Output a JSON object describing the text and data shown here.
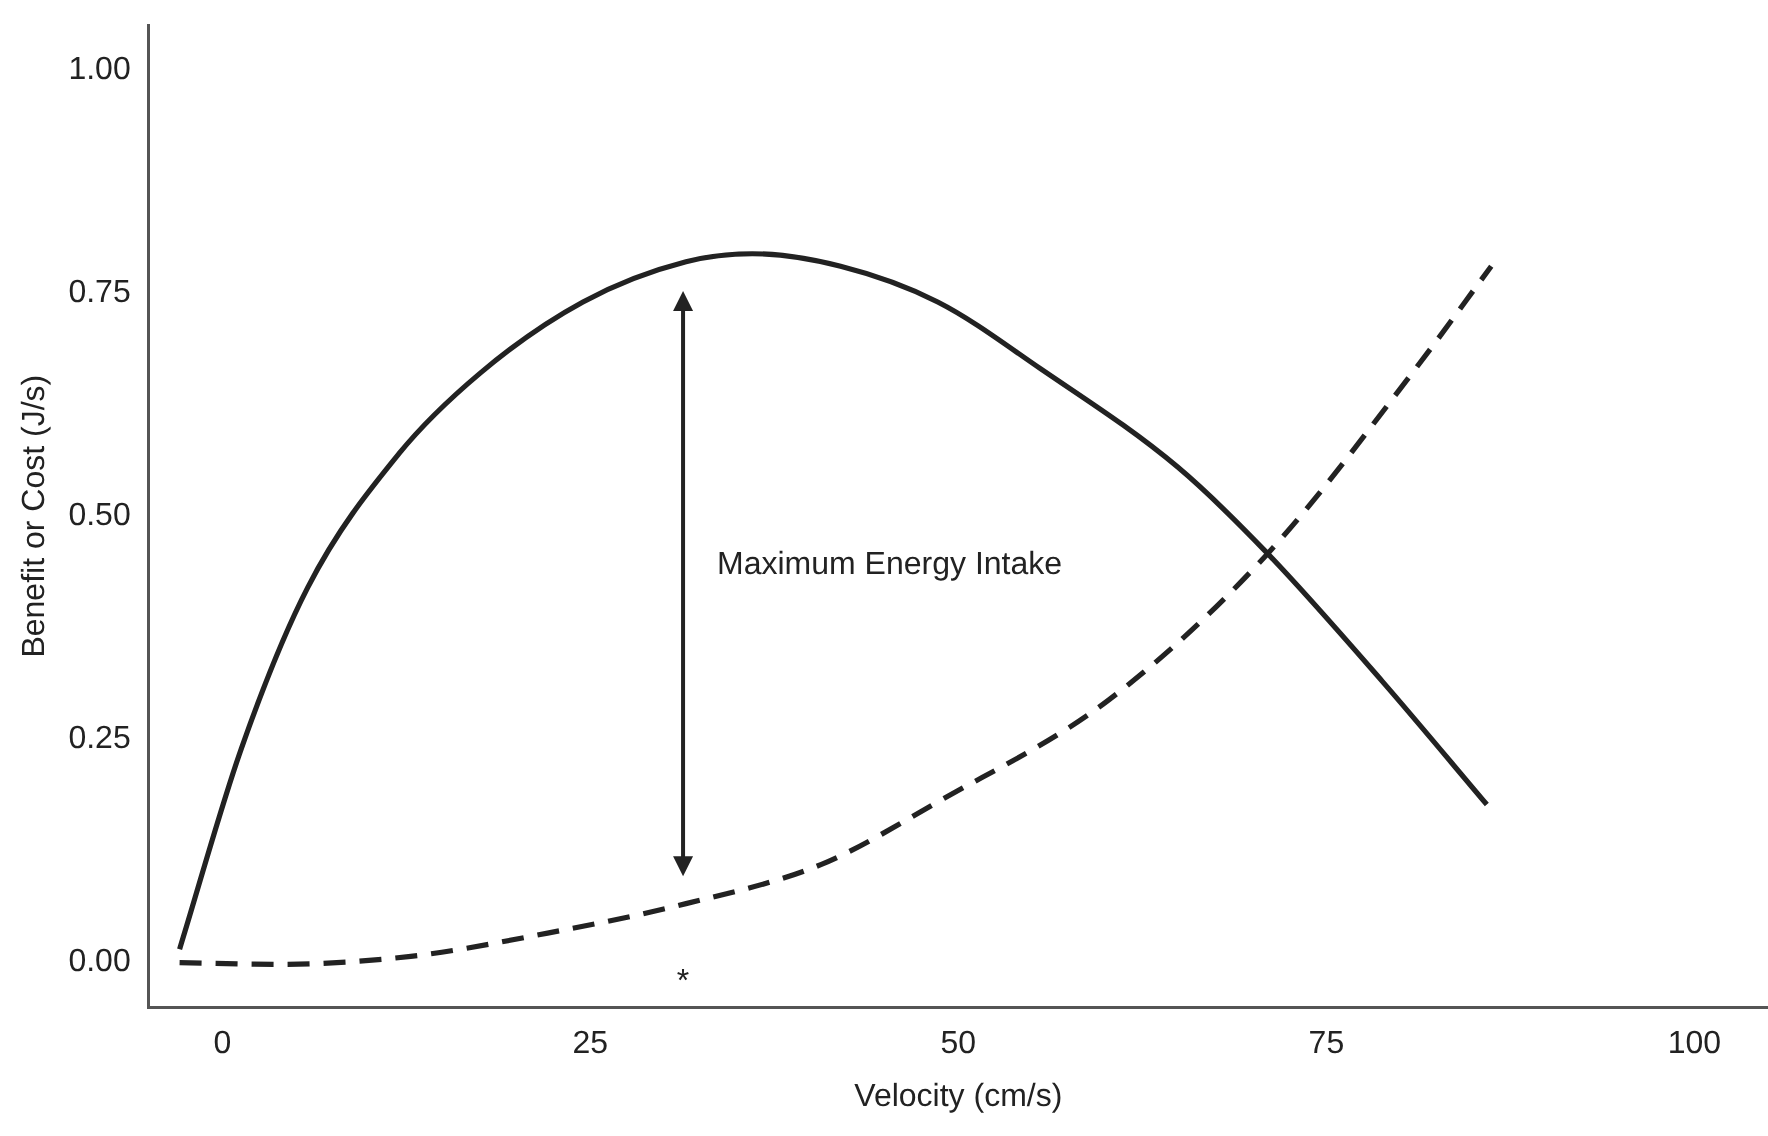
{
  "chart_data": {
    "type": "line",
    "xlabel": "Velocity (cm/s)",
    "ylabel": "Benefit or Cost (J/s)",
    "xlim": [
      -5,
      105
    ],
    "xticks": [
      0,
      25,
      50,
      75,
      100
    ],
    "ylim": [
      -0.05,
      1.05
    ],
    "yticks": [
      {
        "value": 0,
        "label": "0.00"
      },
      {
        "value": 0.25,
        "label": "0.25"
      },
      {
        "value": 0.5,
        "label": "0.50"
      },
      {
        "value": 0.75,
        "label": "0.75"
      },
      {
        "value": 1,
        "label": "1.00"
      }
    ],
    "grid": false,
    "legend": false,
    "marker": "none",
    "series": [
      {
        "color": "#222222",
        "line_style": "solid",
        "x": [
          -2.9,
          1.3,
          5.8,
          12,
          17.5,
          24.5,
          31.5,
          36,
          42,
          48.6,
          55.6,
          64.9,
          70.9,
          78.8,
          85.9
        ],
        "values": [
          0.015,
          0.24,
          0.42,
          0.57,
          0.66,
          0.74,
          0.785,
          0.794,
          0.78,
          0.74,
          0.665,
          0.555,
          0.46,
          0.315,
          0.177
        ]
      },
      {
        "color": "#222222",
        "line_style": "dashed",
        "x": [
          -2.9,
          3.6,
          12.8,
          22.1,
          31.5,
          40.7,
          48.6,
          60.2,
          70.9,
          81,
          86.2
        ],
        "values": [
          0,
          -0.002,
          0.007,
          0.033,
          0.066,
          0.11,
          0.18,
          0.294,
          0.456,
          0.664,
          0.78
        ]
      }
    ],
    "annotations": [
      "Maximum Energy Intake",
      "*"
    ]
  }
}
